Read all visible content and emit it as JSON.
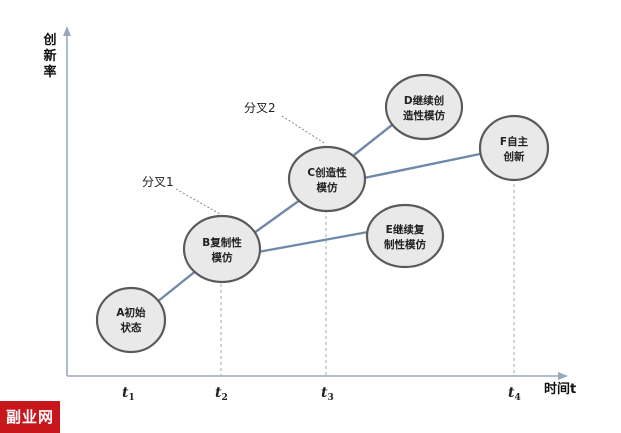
{
  "axes": {
    "y_label": "创新率",
    "x_label": "时间t"
  },
  "ticks": [
    {
      "main": "t",
      "sub": "1"
    },
    {
      "main": "t",
      "sub": "2"
    },
    {
      "main": "t",
      "sub": "3"
    },
    {
      "main": "t",
      "sub": "4"
    }
  ],
  "nodes": [
    {
      "id": "A",
      "lines": [
        "A初始",
        "状态"
      ]
    },
    {
      "id": "B",
      "lines": [
        "B复制性",
        "模仿"
      ]
    },
    {
      "id": "C",
      "lines": [
        "C创造性",
        "模仿"
      ]
    },
    {
      "id": "D",
      "lines": [
        "D继续创",
        "造性模仿"
      ]
    },
    {
      "id": "E",
      "lines": [
        "E继续复",
        "制性模仿"
      ]
    },
    {
      "id": "F",
      "lines": [
        "F自主",
        "创新"
      ]
    }
  ],
  "branches": [
    {
      "label": "分叉1",
      "at": "B"
    },
    {
      "label": "分叉2",
      "at": "C"
    }
  ],
  "edges": [
    [
      "A",
      "B"
    ],
    [
      "B",
      "C"
    ],
    [
      "C",
      "D"
    ],
    [
      "C",
      "F"
    ],
    [
      "B",
      "E"
    ]
  ],
  "watermark": "副业网",
  "colors": {
    "axis": "#9aa8b8",
    "edge": "#6f89a8",
    "node_fill": "#e9e9e9",
    "node_stroke": "#5a5a5a",
    "watermark_bg": "#c8161d"
  }
}
